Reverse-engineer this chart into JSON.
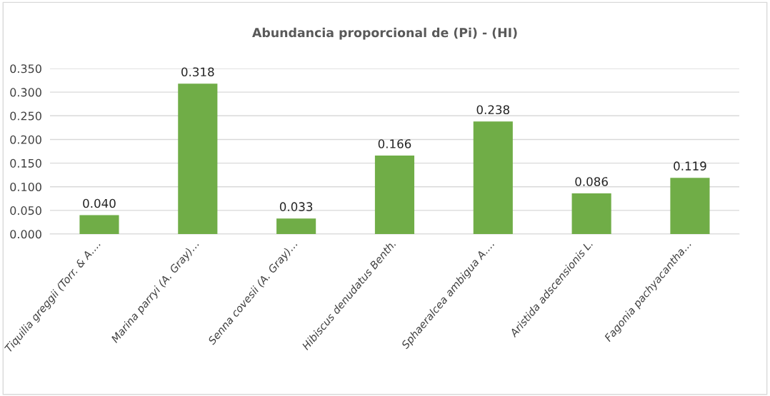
{
  "chart_data": {
    "type": "bar",
    "title": "Abundancia proporcional de (Pi) - (HI)",
    "categories": [
      "Tiquilia greggii (Torr. & A.…",
      "Marina parryi (A. Gray)…",
      "Senna covesii (A. Gray)…",
      "Hibiscus denudatus Benth.",
      "Sphaeralcea ambigua A.…",
      "Aristida adscensionis L.",
      "Fagonia pachyacantha…"
    ],
    "values": [
      0.04,
      0.318,
      0.033,
      0.166,
      0.238,
      0.086,
      0.119
    ],
    "value_labels": [
      "0.040",
      "0.318",
      "0.033",
      "0.166",
      "0.238",
      "0.086",
      "0.119"
    ],
    "color": "#70ad47",
    "ylim": [
      0,
      0.35
    ],
    "yticks": [
      {
        "value": 0,
        "label": "0.000"
      },
      {
        "value": 0.05,
        "label": "0.050"
      },
      {
        "value": 0.1,
        "label": "0.100"
      },
      {
        "value": 0.15,
        "label": "0.150"
      },
      {
        "value": 0.2,
        "label": "0.200"
      },
      {
        "value": 0.25,
        "label": "0.250"
      },
      {
        "value": 0.3,
        "label": "0.300"
      },
      {
        "value": 0.35,
        "label": "0.350"
      }
    ],
    "grid": "y",
    "legend": false
  }
}
